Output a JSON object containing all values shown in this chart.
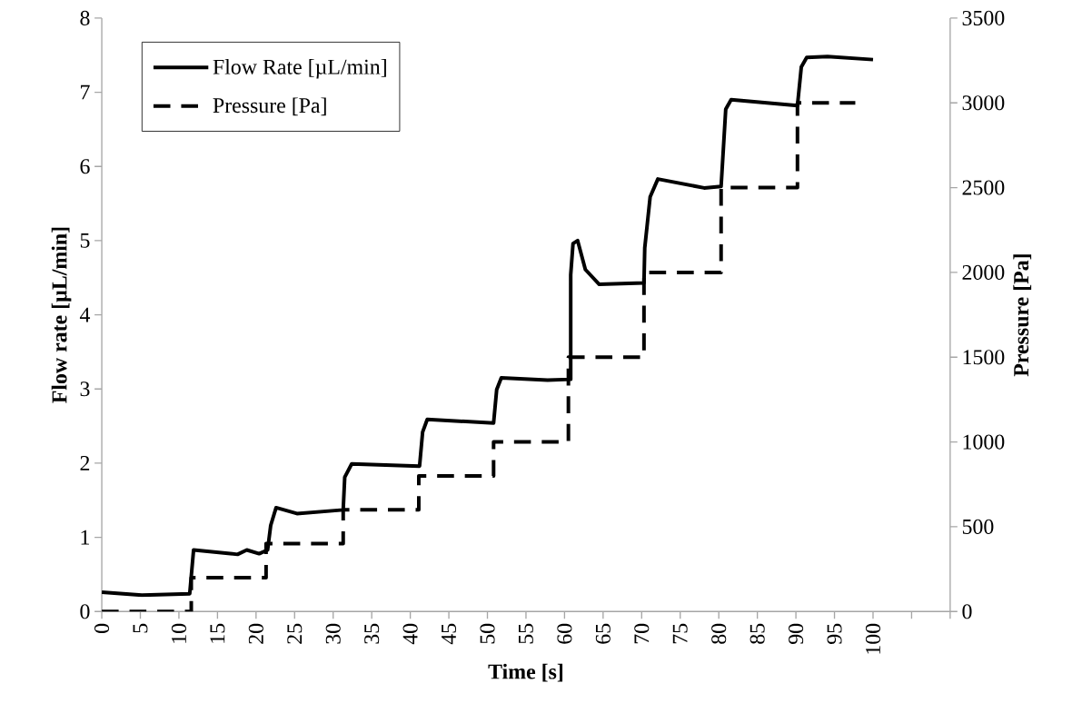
{
  "chart_data": {
    "type": "line",
    "xlabel": "Time [s]",
    "ylabel": "Flow rate [µL/min]",
    "y2label": "Pressure [Pa]",
    "xlim": [
      0,
      110
    ],
    "xticks": [
      0,
      5,
      10,
      15,
      20,
      25,
      30,
      35,
      40,
      45,
      50,
      55,
      60,
      65,
      70,
      75,
      80,
      85,
      90,
      95,
      100,
      {
        "value": 105,
        "label": null
      },
      {
        "value": 110,
        "label": null
      }
    ],
    "ylim": [
      0,
      8
    ],
    "yticks": [
      0,
      1,
      2,
      3,
      4,
      5,
      6,
      7,
      8
    ],
    "y2lim": [
      0,
      3500
    ],
    "y2ticks": [
      0,
      500,
      1000,
      1500,
      2000,
      2500,
      3000,
      3500
    ],
    "grid": false,
    "legend": "top left",
    "marker": "none",
    "series": [
      {
        "name": "Flow Rate [µL/min]",
        "color": "#000000",
        "line_style": "solid",
        "x": [
          0,
          5.2,
          11.4,
          11.9,
          17.6,
          18.8,
          20.4,
          21.5,
          21.9,
          22.6,
          25.3,
          31.3,
          31.5,
          32.4,
          41.2,
          41.6,
          42.2,
          50.8,
          51.2,
          51.8,
          57.8,
          60.8,
          60.8,
          61.1,
          61.7,
          62.7,
          64.5,
          70.3,
          70.4,
          71.1,
          72.1,
          78.1,
          80.3,
          80.9,
          81.6,
          90.2,
          90.7,
          91.4,
          94.1,
          100
        ],
        "values": [
          0.26,
          0.22,
          0.24,
          0.83,
          0.77,
          0.83,
          0.78,
          0.83,
          1.16,
          1.4,
          1.32,
          1.37,
          1.81,
          1.99,
          1.96,
          2.42,
          2.59,
          2.54,
          2.99,
          3.15,
          3.12,
          3.13,
          4.54,
          4.96,
          5.0,
          4.61,
          4.41,
          4.43,
          4.9,
          5.59,
          5.83,
          5.71,
          5.73,
          6.77,
          6.9,
          6.82,
          7.34,
          7.47,
          7.48,
          7.44
        ]
      },
      {
        "name": "Pressure [Pa]",
        "type": "step",
        "axis": "y2",
        "color": "#000000",
        "line_style": "dashed",
        "x": [
          0,
          11.6,
          21.3,
          31.3,
          41.1,
          50.8,
          60.5,
          70.3,
          80.3,
          90.2,
          97.7
        ],
        "values": [
          0,
          200,
          400,
          600,
          800,
          1000,
          1500,
          2000,
          2500,
          3000,
          3000
        ]
      }
    ]
  }
}
